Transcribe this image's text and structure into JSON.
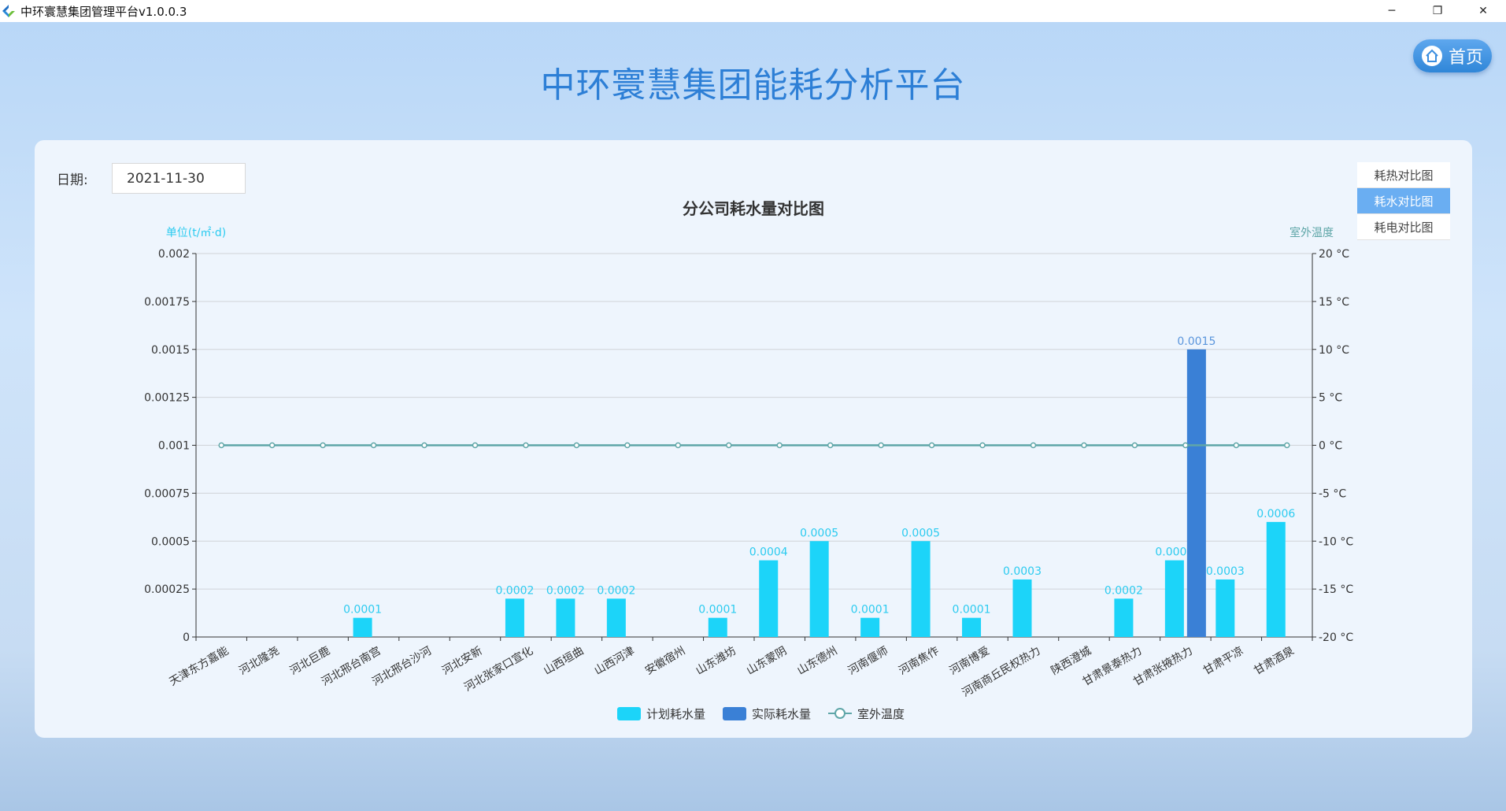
{
  "window": {
    "title": "中环寰慧集团管理平台v1.0.0.3",
    "minimize": "─",
    "restore": "❐",
    "close": "✕"
  },
  "header": {
    "title": "中环寰慧集团能耗分析平台",
    "home_label": "首页"
  },
  "filter": {
    "date_label": "日期:",
    "date_value": "2021-11-30"
  },
  "tabs": [
    {
      "label": "耗热对比图",
      "active": false
    },
    {
      "label": "耗水对比图",
      "active": true
    },
    {
      "label": "耗电对比图",
      "active": false
    }
  ],
  "colors": {
    "planned": "#1cd4f9",
    "actual": "#3a80d6",
    "temperature": "#5fa6a8"
  },
  "chart_data": {
    "type": "bar",
    "title": "分公司耗水量对比图",
    "ylabel": "单位(t/㎡·d)",
    "y2label": "室外温度",
    "ylim": [
      0,
      0.002
    ],
    "y_ticks": [
      "0",
      "0.00025",
      "0.0005",
      "0.00075",
      "0.001",
      "0.00125",
      "0.0015",
      "0.00175",
      "0.002"
    ],
    "y2lim": [
      -20,
      20
    ],
    "y2_ticks": [
      "-20 °C",
      "-15 °C",
      "-10 °C",
      "-5 °C",
      "0 °C",
      "5 °C",
      "10 °C",
      "15 °C",
      "20 °C"
    ],
    "grid": true,
    "legend_position": "bottom",
    "categories": [
      "天津东方嘉能",
      "河北隆尧",
      "河北巨鹿",
      "河北邢台南宫",
      "河北邢台沙河",
      "河北安新",
      "河北张家口宣化",
      "山西垣曲",
      "山西河津",
      "安徽宿州",
      "山东潍坊",
      "山东蒙阴",
      "山东德州",
      "河南偃师",
      "河南焦作",
      "河南博爱",
      "河南商丘民权热力",
      "陕西澄城",
      "甘肃景泰热力",
      "甘肃张掖热力",
      "甘肃平凉",
      "甘肃酒泉"
    ],
    "series": [
      {
        "name": "计划耗水量",
        "type": "bar",
        "values": [
          0,
          0,
          0,
          0.0001,
          0,
          0,
          0.0002,
          0.0002,
          0.0002,
          0,
          0.0001,
          0.0004,
          0.0005,
          0.0001,
          0.0005,
          0.0001,
          0.0003,
          0,
          0.0002,
          0.0004,
          0.0003,
          0.0006
        ]
      },
      {
        "name": "实际耗水量",
        "type": "bar",
        "values": [
          0,
          0,
          0,
          0,
          0,
          0,
          0,
          0,
          0,
          0,
          0,
          0,
          0,
          0,
          0,
          0,
          0,
          0,
          0,
          0.0015,
          0,
          0
        ]
      },
      {
        "name": "室外温度",
        "type": "line",
        "axis": "right",
        "values": [
          0,
          0,
          0,
          0,
          0,
          0,
          0,
          0,
          0,
          0,
          0,
          0,
          0,
          0,
          0,
          0,
          0,
          0,
          0,
          0,
          0,
          0
        ]
      }
    ]
  }
}
